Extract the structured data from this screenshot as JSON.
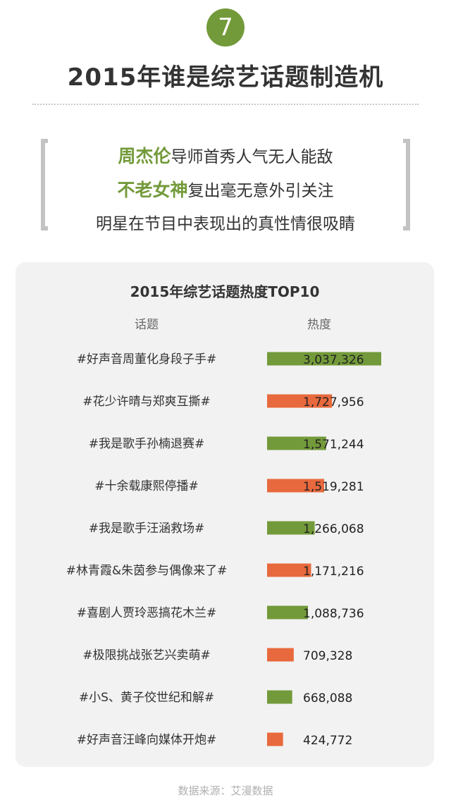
{
  "badge": {
    "number": "7"
  },
  "header": {
    "title": "2015年谁是综艺话题制造机"
  },
  "quote": {
    "line1": {
      "highlight": "周杰伦",
      "text": "导师首秀人气无人能敌"
    },
    "line2": {
      "highlight": "不老女神",
      "text": "复出毫无意外引关注"
    },
    "line3": {
      "text": "明星在节目中表现出的真性情很吸睛"
    }
  },
  "colors": {
    "green": "#739a3a",
    "orange": "#e8693d",
    "card": "#f2f2f2"
  },
  "chart_data": {
    "type": "bar",
    "orientation": "horizontal",
    "title": "2015年综艺话题热度TOP10",
    "column_headers": {
      "topic": "话题",
      "value": "热度"
    },
    "categories": [
      "#好声音周董化身段子手#",
      "#花少许晴与郑爽互撕#",
      "#我是歌手孙楠退赛#",
      "#十余载康熙停播#",
      "#我是歌手汪涵救场#",
      "#林青霞&朱茵参与偶像来了#",
      "#喜剧人贾玲恶搞花木兰#",
      "#极限挑战张艺兴卖萌#",
      "#小S、黄子佼世纪和解#",
      "#好声音汪峰向媒体开炮#"
    ],
    "values": [
      3037326,
      1727956,
      1571244,
      1519281,
      1266068,
      1171216,
      1088736,
      709328,
      668088,
      424772
    ],
    "value_labels": [
      "3,037,326",
      "1,727,956",
      "1,571,244",
      "1,519,281",
      "1,266,068",
      "1,171,216",
      "1,088,736",
      "709,328",
      "668,088",
      "424,772"
    ],
    "bar_colors": [
      "#739a3a",
      "#e8693d",
      "#739a3a",
      "#e8693d",
      "#739a3a",
      "#e8693d",
      "#739a3a",
      "#e8693d",
      "#739a3a",
      "#e8693d"
    ],
    "grid": false
  },
  "footer": {
    "source": "数据来源：艾漫数据"
  }
}
